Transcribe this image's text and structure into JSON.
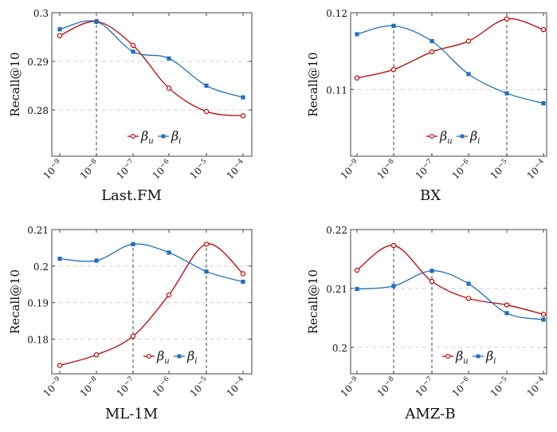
{
  "x_tick_labels": [
    {
      "base": "10",
      "exp": "−9"
    },
    {
      "base": "10",
      "exp": "−8"
    },
    {
      "base": "10",
      "exp": "−7"
    },
    {
      "base": "10",
      "exp": "−6"
    },
    {
      "base": "10",
      "exp": "−5"
    },
    {
      "base": "10",
      "exp": "−4"
    }
  ],
  "legend": [
    {
      "sym": "β",
      "sub": "u",
      "color": "#c00000"
    },
    {
      "sym": "β",
      "sub": "i",
      "color": "#1f6fbf"
    }
  ],
  "colors": {
    "beta_u": "#c00000",
    "beta_i": "#1f6fbf"
  },
  "chart_data": [
    {
      "type": "line",
      "title": "Last.FM",
      "ylabel": "Recall@10",
      "x": [
        -9,
        -8,
        -7,
        -6,
        -5,
        -4
      ],
      "xlim": [
        -9.2,
        -3.9
      ],
      "ylim": [
        0.2705,
        0.3
      ],
      "ytick_values": [
        0.28,
        0.29,
        0.3
      ],
      "ytick_labels": [
        "0.28",
        "0.29",
        "0.3"
      ],
      "series": [
        {
          "name": "β_u",
          "marker": "circle",
          "values": [
            0.2953,
            0.2982,
            0.2933,
            0.2845,
            0.2797,
            0.2788
          ]
        },
        {
          "name": "β_i",
          "marker": "square",
          "values": [
            0.2966,
            0.2982,
            0.292,
            0.2906,
            0.285,
            0.2826
          ]
        }
      ],
      "dashed_at_x": [
        -8
      ],
      "legend_position": "center-right"
    },
    {
      "type": "line",
      "title": "BX",
      "ylabel": "Recall@10",
      "x": [
        -9,
        -8,
        -7,
        -6,
        -5,
        -4
      ],
      "xlim": [
        -9.2,
        -3.9
      ],
      "ylim": [
        0.1013,
        0.12
      ],
      "ytick_values": [
        0.11,
        0.12
      ],
      "ytick_labels": [
        "0.11",
        "0.12"
      ],
      "series": [
        {
          "name": "β_u",
          "marker": "circle",
          "values": [
            0.1115,
            0.1126,
            0.1149,
            0.1163,
            0.1192,
            0.1178
          ]
        },
        {
          "name": "β_i",
          "marker": "square",
          "values": [
            0.1172,
            0.1183,
            0.1163,
            0.112,
            0.1095,
            0.1082
          ]
        }
      ],
      "dashed_at_x": [
        -8,
        -5
      ],
      "legend_position": "center-right"
    },
    {
      "type": "line",
      "title": "ML-1M",
      "ylabel": "Recall@10",
      "x": [
        -9,
        -8,
        -7,
        -6,
        -5,
        -4
      ],
      "xlim": [
        -9.2,
        -3.9
      ],
      "ylim": [
        0.1705,
        0.21
      ],
      "ytick_values": [
        0.18,
        0.19,
        0.2,
        0.21
      ],
      "ytick_labels": [
        "0.18",
        "0.19",
        "0.2",
        "0.21"
      ],
      "series": [
        {
          "name": "β_u",
          "marker": "circle",
          "values": [
            0.1728,
            0.1757,
            0.1808,
            0.1921,
            0.206,
            0.1979
          ]
        },
        {
          "name": "β_i",
          "marker": "square",
          "values": [
            0.202,
            0.2015,
            0.206,
            0.2037,
            0.1985,
            0.1957
          ]
        }
      ],
      "dashed_at_x": [
        -7,
        -5
      ],
      "legend_position": "bottom-right"
    },
    {
      "type": "line",
      "title": "AMZ-B",
      "ylabel": "Recall@10",
      "x": [
        -9,
        -8,
        -7,
        -6,
        -5,
        -4
      ],
      "xlim": [
        -9.2,
        -3.9
      ],
      "ylim": [
        0.1955,
        0.22
      ],
      "ytick_values": [
        0.2,
        0.21,
        0.22
      ],
      "ytick_labels": [
        "0.2",
        "0.21",
        "0.22"
      ],
      "series": [
        {
          "name": "β_u",
          "marker": "circle",
          "values": [
            0.2131,
            0.2173,
            0.2112,
            0.2083,
            0.2072,
            0.2056
          ]
        },
        {
          "name": "β_i",
          "marker": "square",
          "values": [
            0.2099,
            0.2104,
            0.213,
            0.2108,
            0.2058,
            0.2047
          ]
        }
      ],
      "dashed_at_x": [
        -8,
        -7
      ],
      "legend_position": "bottom-right"
    }
  ]
}
